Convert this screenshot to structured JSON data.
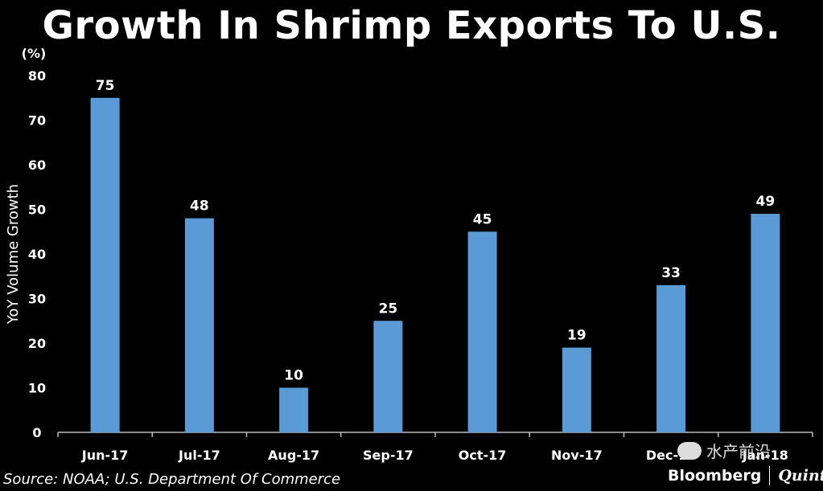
{
  "chart_data": {
    "type": "bar",
    "title": "Growth In Shrimp Exports To U.S.",
    "ylabel": "YoY Volume Growth",
    "yunit": "(%)",
    "ylim": [
      0,
      80
    ],
    "yticks": [
      0,
      10,
      20,
      30,
      40,
      50,
      60,
      70,
      80
    ],
    "categories": [
      "Jun-17",
      "Jul-17",
      "Aug-17",
      "Sep-17",
      "Oct-17",
      "Nov-17",
      "Dec-17",
      "Jan-18"
    ],
    "values": [
      75,
      48,
      10,
      25,
      45,
      19,
      33,
      49
    ],
    "bar_color": "#5b9bd5",
    "grid": false,
    "legend": "none"
  },
  "source": "Source: NOAA; U.S. Department Of Commerce",
  "watermark": "水产前沿",
  "brand": {
    "name": "Bloomberg",
    "suffix": "Quint"
  }
}
